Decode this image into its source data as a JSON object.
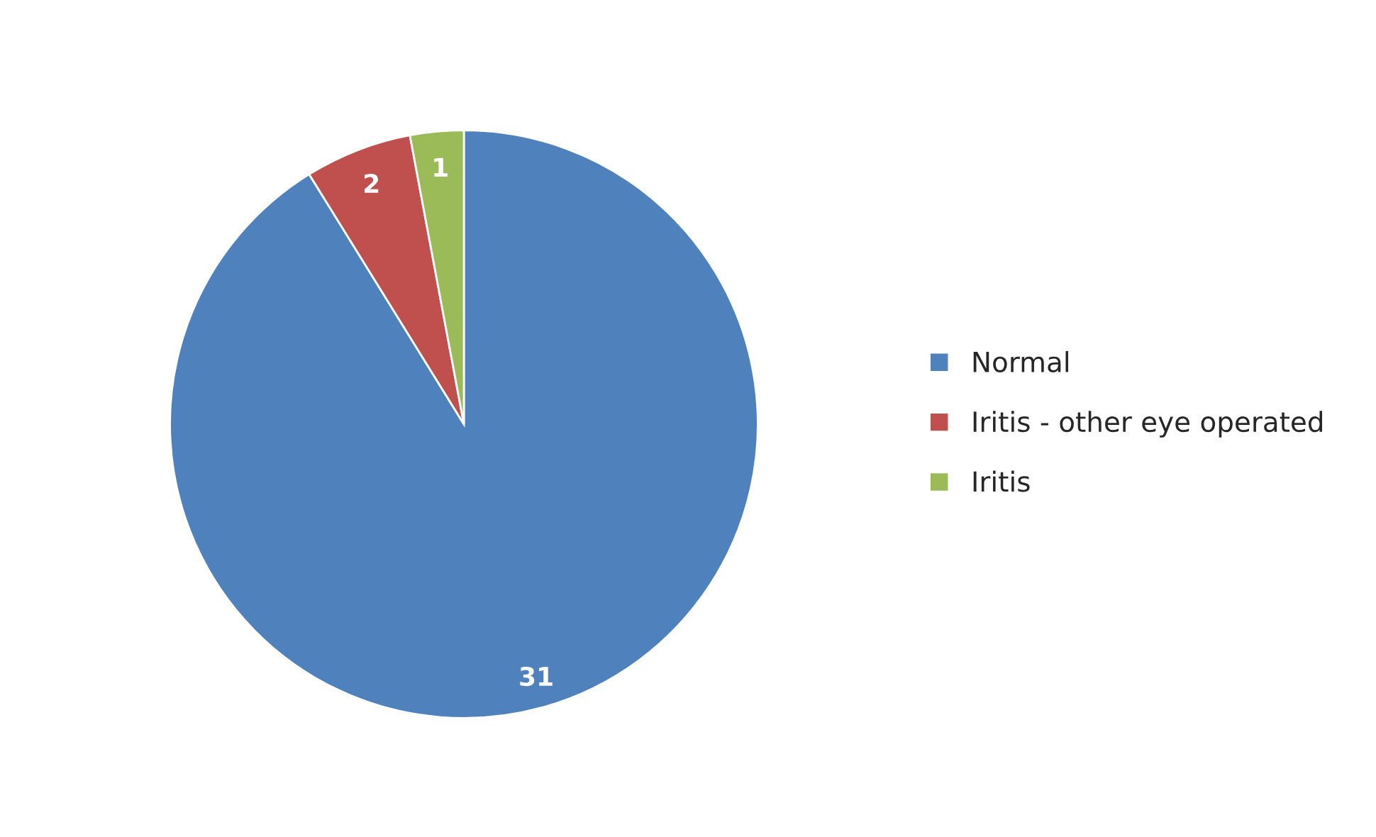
{
  "chart_data": {
    "type": "pie",
    "categories": [
      "Normal",
      "Iritis - other eye operated",
      "Iritis"
    ],
    "values": [
      31,
      2,
      1
    ],
    "colors": [
      "#4f81bd",
      "#c0504d",
      "#9bbb59"
    ],
    "data_labels": true,
    "legend": "right"
  }
}
